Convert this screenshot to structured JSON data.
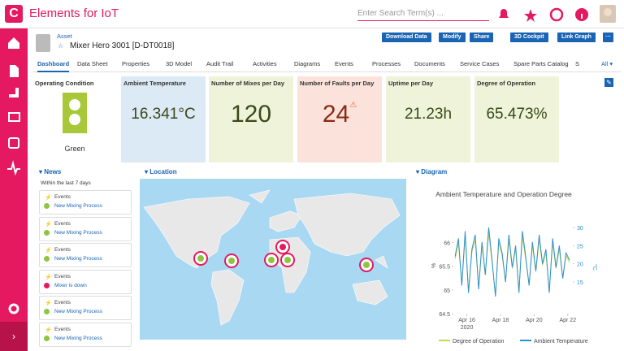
{
  "topbar": {
    "app_title": "Elements for IoT",
    "search_placeholder": "Enter Search Term(s) ..."
  },
  "header": {
    "breadcrumb": "Asset",
    "title": "Mixer Hero 3001 [D-DT0018]",
    "buttons": [
      "Download Data",
      "Modify",
      "Share",
      "3D Cockpit",
      "Link Graph"
    ]
  },
  "tabs": {
    "items": [
      "Dashboard",
      "Data Sheet",
      "Properties",
      "3D Model",
      "Audit Trail",
      "Activities",
      "Diagrams",
      "Events",
      "Processes",
      "Documents",
      "Service Cases",
      "Spare Parts Catalog",
      "S"
    ],
    "active": 0,
    "more": "All"
  },
  "kpis": [
    {
      "title": "Operating Condition",
      "value": "Green"
    },
    {
      "title": "Ambient Temperature",
      "value": 16.341,
      "unit": "°C",
      "color": "#dbeaf5"
    },
    {
      "title": "Number of Mixes per Day",
      "value": 120,
      "color": "#eef3d9"
    },
    {
      "title": "Number of Faults per Day",
      "value": 24,
      "color": "#fbe3dc"
    },
    {
      "title": "Uptime per Day",
      "value": 21.23,
      "unit": "h",
      "color": "#eef3d9"
    },
    {
      "title": "Degree of Operation",
      "value": 65.473,
      "unit": "%",
      "color": "#eef3d9"
    }
  ],
  "news": {
    "title": "News",
    "subtitle": "Within the last 7 days",
    "items": [
      {
        "type": "Events",
        "text": "New Mixing Process"
      },
      {
        "type": "Events",
        "text": "New Mixing Process"
      },
      {
        "type": "Events",
        "text": "New Mixing Process"
      },
      {
        "type": "Events",
        "text": "Mixer is down"
      },
      {
        "type": "Events",
        "text": "New Mixing Process"
      },
      {
        "type": "Events",
        "text": "New Mixing Process"
      }
    ]
  },
  "location": {
    "title": "Location"
  },
  "diagram": {
    "title": "Diagram",
    "chart": {
      "type": "line",
      "title": "Ambient Temperature and Operation Degree",
      "x": [
        15.3,
        15.5,
        15.7,
        15.9,
        16.1,
        16.3,
        16.5,
        16.7,
        16.9,
        17.1,
        17.3,
        17.5,
        17.7,
        17.9,
        18.1,
        18.3,
        18.5,
        18.7,
        18.9,
        19.1,
        19.3,
        19.5,
        19.7,
        19.9,
        20.1,
        20.3,
        20.5,
        20.7,
        20.9,
        21.1,
        21.3,
        21.5,
        21.7,
        21.9,
        22.1
      ],
      "series": [
        {
          "name": "Degree of Operation",
          "color": "#c8d84a",
          "values": [
            65.65,
            66.0,
            65.11,
            66.13,
            64.97,
            65.79,
            66.06,
            65.04,
            65.93,
            65.31,
            66.2,
            65.58,
            64.9,
            66.0,
            65.72,
            65.17,
            66.06,
            65.45,
            65.86,
            64.97,
            66.13,
            65.65,
            65.11,
            65.93,
            65.38,
            66.06,
            65.52,
            65.79,
            64.97,
            66.0,
            65.45,
            65.86,
            65.24,
            65.72,
            65.58
          ]
        },
        {
          "name": "Ambient Temperature",
          "color": "#2e8fd0",
          "axis": "y2",
          "values": [
            22,
            27,
            14,
            29,
            12,
            24,
            28,
            13,
            26,
            17,
            30,
            21,
            11,
            27,
            23,
            15,
            28,
            19,
            25,
            12,
            29,
            22,
            14,
            26,
            18,
            28,
            20,
            24,
            12,
            27,
            19,
            25,
            16,
            23,
            21
          ]
        }
      ],
      "xlim": [
        15.2,
        22.3
      ],
      "xticks": [
        {
          "value": 16,
          "label": "Apr 16",
          "sublabel": "2020"
        },
        {
          "value": 18,
          "label": "Apr 18"
        },
        {
          "value": 20,
          "label": "Apr 20"
        },
        {
          "value": 22,
          "label": "Apr 22"
        }
      ],
      "ylim": [
        64.5,
        66.4
      ],
      "yticks": [
        64.5,
        65,
        65.5,
        66
      ],
      "ylabel": "%",
      "y2lim": [
        6.3,
        31.1
      ],
      "y2ticks": [
        15,
        20,
        25,
        30
      ],
      "y2label": "°C"
    }
  }
}
